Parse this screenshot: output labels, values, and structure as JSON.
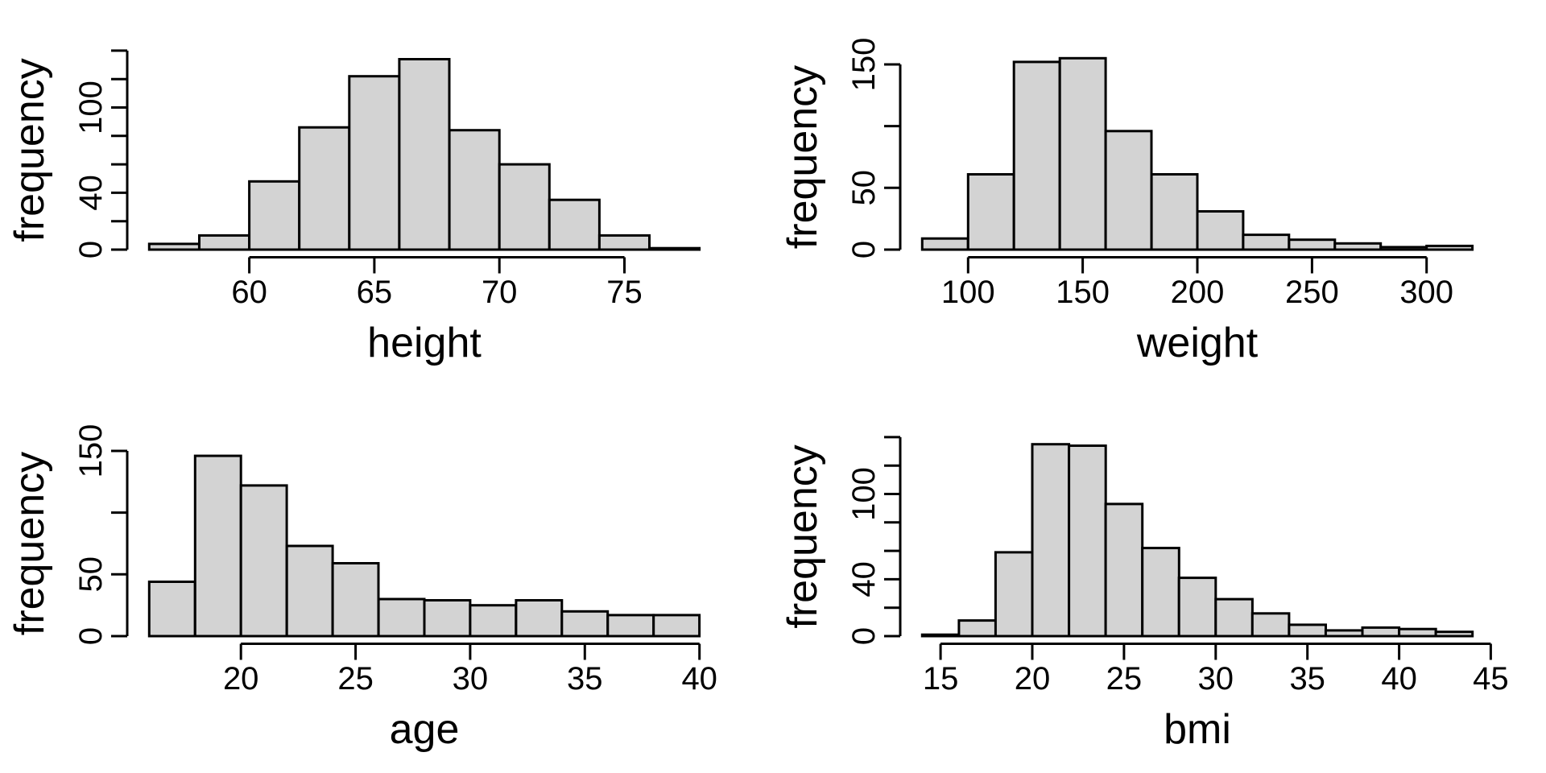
{
  "figure": {
    "background_color": "#ffffff",
    "bar_fill_color": "#d3d3d3",
    "line_color": "#000000",
    "layout": "2x2 grid of base-R style histograms, no titles, no legend"
  },
  "chart_data": [
    {
      "type": "bar",
      "subtype": "histogram",
      "title": "",
      "xlabel": "height",
      "ylabel": "frequency",
      "bin_start": 56,
      "bin_width": 2,
      "counts": [
        4,
        10,
        48,
        86,
        122,
        134,
        84,
        60,
        35,
        10,
        1
      ],
      "bin_edges": [
        56,
        58,
        60,
        62,
        64,
        66,
        68,
        70,
        72,
        74,
        76,
        78
      ],
      "x_ticks": [
        60,
        65,
        70,
        75
      ],
      "xlim": [
        56,
        78
      ],
      "y_ticks": [
        0,
        20,
        40,
        60,
        80,
        100,
        120,
        140
      ],
      "y_tick_labels_shown": [
        "0",
        "40",
        "100"
      ],
      "ylim": [
        0,
        140
      ],
      "grid": "off"
    },
    {
      "type": "bar",
      "subtype": "histogram",
      "title": "",
      "xlabel": "weight",
      "ylabel": "frequency",
      "bin_start": 80,
      "bin_width": 20,
      "counts": [
        9,
        61,
        152,
        155,
        96,
        61,
        31,
        12,
        8,
        5,
        2,
        3
      ],
      "bin_edges": [
        80,
        100,
        120,
        140,
        160,
        180,
        200,
        220,
        240,
        260,
        280,
        300,
        320
      ],
      "x_ticks": [
        100,
        150,
        200,
        250,
        300
      ],
      "xlim": [
        80,
        320
      ],
      "y_ticks": [
        0,
        50,
        100,
        150
      ],
      "y_tick_labels_shown": [
        "0",
        "50",
        "150"
      ],
      "ylim": [
        0,
        150
      ],
      "grid": "off"
    },
    {
      "type": "bar",
      "subtype": "histogram",
      "title": "",
      "xlabel": "age",
      "ylabel": "frequency",
      "bin_start": 16,
      "bin_width": 2,
      "counts": [
        44,
        146,
        122,
        73,
        59,
        30,
        29,
        25,
        29,
        20,
        17,
        17
      ],
      "bin_edges": [
        16,
        18,
        20,
        22,
        24,
        26,
        28,
        30,
        32,
        34,
        36,
        38,
        40
      ],
      "x_ticks": [
        20,
        25,
        30,
        35,
        40
      ],
      "xlim": [
        16,
        40
      ],
      "y_ticks": [
        0,
        50,
        100,
        150
      ],
      "y_tick_labels_shown": [
        "0",
        "50",
        "150"
      ],
      "ylim": [
        0,
        150
      ],
      "grid": "off"
    },
    {
      "type": "bar",
      "subtype": "histogram",
      "title": "",
      "xlabel": "bmi",
      "ylabel": "frequency",
      "bin_start": 14,
      "bin_width": 2,
      "counts": [
        1,
        11,
        59,
        135,
        134,
        93,
        62,
        41,
        26,
        16,
        8,
        4,
        6,
        5,
        3
      ],
      "bin_edges": [
        14,
        16,
        18,
        20,
        22,
        24,
        26,
        28,
        30,
        32,
        34,
        36,
        38,
        40,
        42,
        44
      ],
      "x_ticks": [
        15,
        20,
        25,
        30,
        35,
        40,
        45
      ],
      "xlim": [
        14,
        44
      ],
      "y_ticks": [
        0,
        20,
        40,
        60,
        80,
        100,
        120,
        140
      ],
      "y_tick_labels_shown": [
        "0",
        "40",
        "100"
      ],
      "ylim": [
        0,
        140
      ],
      "grid": "off"
    }
  ]
}
